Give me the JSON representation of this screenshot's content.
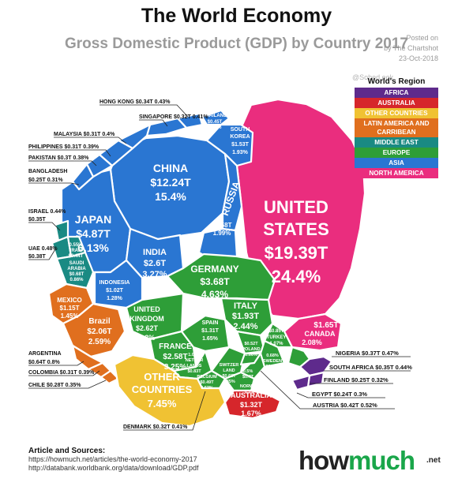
{
  "header": {
    "title": "The World Economy",
    "subtitle": "Gross Domestic Product (GDP) by Country 2017",
    "posted_line1": "Posted on",
    "posted_line2": "by The Chartshot",
    "posted_date": "23-Oct-2018",
    "watermark": "@Sobed.ook"
  },
  "legend": {
    "title": "World's Region",
    "items": [
      {
        "label": "AFRICA",
        "color": "#5e2a8c"
      },
      {
        "label": "AUSTRALIA",
        "color": "#d6262b"
      },
      {
        "label": "OTHER COUNTRIES",
        "color": "#f0c233"
      },
      {
        "label": "LATIN AMERICA AND CARRIBEAN",
        "color": "#e06f1e"
      },
      {
        "label": "MIDDLE EAST",
        "color": "#1a8a83"
      },
      {
        "label": "EUROPE",
        "color": "#2e9e38"
      },
      {
        "label": "ASIA",
        "color": "#2a76d2"
      },
      {
        "label": "NORTH AMERICA",
        "color": "#ea2d7e"
      }
    ]
  },
  "chart_data": {
    "type": "voronoi-treemap",
    "title": "The World Economy",
    "subtitle": "Gross Domestic Product (GDP) by Country 2017",
    "regions": [
      {
        "name": "NORTH AMERICA",
        "color": "#ea2d7e",
        "countries": [
          {
            "name": "UNITED STATES",
            "gdp": "$19.39T",
            "share": "24.4%"
          },
          {
            "name": "CANADA",
            "gdp": "$1.65T",
            "share": "2.08%"
          }
        ]
      },
      {
        "name": "ASIA",
        "color": "#2a76d2",
        "countries": [
          {
            "name": "CHINA",
            "gdp": "$12.24T",
            "share": "15.4%"
          },
          {
            "name": "JAPAN",
            "gdp": "$4.87T",
            "share": "6.13%"
          },
          {
            "name": "INDIA",
            "gdp": "$2.6T",
            "share": "3.27%"
          },
          {
            "name": "RUSSIA",
            "gdp": "$1.58T",
            "share": "1.99%"
          },
          {
            "name": "SOUTH KOREA",
            "gdp": "$1.53T",
            "share": "1.93%"
          },
          {
            "name": "INDONESIA",
            "gdp": "$1.02T",
            "share": "1.28%"
          },
          {
            "name": "THAILAND",
            "gdp": "$0.45T",
            "share": "0.57%"
          },
          {
            "name": "HONG KONG",
            "gdp": "$0.34T",
            "share": "0.43%"
          },
          {
            "name": "SINGAPORE",
            "gdp": "$0.32T",
            "share": "0.41%"
          },
          {
            "name": "MALAYSIA",
            "gdp": "$0.31T",
            "share": "0.4%"
          },
          {
            "name": "PHILIPPINES",
            "gdp": "$0.31T",
            "share": "0.39%"
          },
          {
            "name": "PAKISTAN",
            "gdp": "$0.3T",
            "share": "0.38%"
          },
          {
            "name": "BANGLADESH",
            "gdp": "$0.25T",
            "share": "0.31%"
          }
        ]
      },
      {
        "name": "MIDDLE EAST",
        "color": "#1a8a83",
        "countries": [
          {
            "name": "SAUDI ARABIA",
            "gdp": "$0.68T",
            "share": "0.86%"
          },
          {
            "name": "IRAN",
            "gdp": "$0.44T",
            "share": "0.55%"
          },
          {
            "name": "ISRAEL",
            "gdp": "$0.35T",
            "share": "0.44%"
          },
          {
            "name": "UAE",
            "gdp": "$0.38T",
            "share": "0.48%"
          }
        ]
      },
      {
        "name": "EUROPE",
        "color": "#2e9e38",
        "countries": [
          {
            "name": "GERMANY",
            "gdp": "$3.68T",
            "share": "4.63%"
          },
          {
            "name": "UNITED KINGDOM",
            "gdp": "$2.62T",
            "share": "3.3%"
          },
          {
            "name": "FRANCE",
            "gdp": "$2.58T",
            "share": "3.25%"
          },
          {
            "name": "ITALY",
            "gdp": "$1.93T",
            "share": "2.44%"
          },
          {
            "name": "SPAIN",
            "gdp": "$1.31T",
            "share": "1.65%"
          },
          {
            "name": "NETHERLANDS",
            "gdp": "$0.83T",
            "share": "1.04%"
          },
          {
            "name": "TURKEY",
            "gdp": "$0.85T",
            "share": "1.07%"
          },
          {
            "name": "SWITZERLAND",
            "gdp": "$0.68T",
            "share": "0.85%"
          },
          {
            "name": "SWEDEN",
            "gdp": "$0.54T",
            "share": "0.68%"
          },
          {
            "name": "POLAND",
            "gdp": "$0.52T",
            "share": "0.66%"
          },
          {
            "name": "BELGIUM",
            "gdp": "$0.49T",
            "share": "0.62%"
          },
          {
            "name": "AUSTRIA",
            "gdp": "$0.42T",
            "share": "0.52%"
          },
          {
            "name": "NORWAY",
            "gdp": "$0.4T",
            "share": "0.5%"
          },
          {
            "name": "DENMARK",
            "gdp": "$0.32T",
            "share": "0.41%"
          },
          {
            "name": "FINLAND",
            "gdp": "$0.25T",
            "share": "0.32%"
          }
        ]
      },
      {
        "name": "LATIN AMERICA AND CARRIBEAN",
        "color": "#e06f1e",
        "countries": [
          {
            "name": "Brazil",
            "gdp": "$2.06T",
            "share": "2.59%"
          },
          {
            "name": "MEXICO",
            "gdp": "$1.15T",
            "share": "1.45%"
          },
          {
            "name": "ARGENTINA",
            "gdp": "$0.64T",
            "share": "0.8%"
          },
          {
            "name": "COLOMBIA",
            "gdp": "$0.31T",
            "share": "0.39%"
          },
          {
            "name": "CHILE",
            "gdp": "$0.28T",
            "share": "0.35%"
          }
        ]
      },
      {
        "name": "AUSTRALIA",
        "color": "#d6262b",
        "countries": [
          {
            "name": "AUSTRALIA",
            "gdp": "$1.32T",
            "share": "1.67%"
          }
        ]
      },
      {
        "name": "OTHER COUNTRIES",
        "color": "#f0c233",
        "countries": [
          {
            "name": "OTHER COUNTRIES",
            "gdp": "",
            "share": "7.45%"
          }
        ]
      },
      {
        "name": "AFRICA",
        "color": "#5e2a8c",
        "countries": [
          {
            "name": "NIGERIA",
            "gdp": "$0.37T",
            "share": "0.47%"
          },
          {
            "name": "SOUTH AFRICA",
            "gdp": "$0.35T",
            "share": "0.44%"
          },
          {
            "name": "EGYPT",
            "gdp": "$0.24T",
            "share": "0.3%"
          }
        ]
      }
    ],
    "callouts": [
      "HONG KONG $0.34T 0.43%",
      "SINGAPORE $0.32T 0.41%",
      "MALAYSIA $0.31T 0.4%",
      "PHILIPPINES $0.31T 0.39%",
      "PAKISTAN $0.3T 0.38%",
      "BANGLADESH",
      "$0.25T 0.31%",
      "ISRAEL 0.44%",
      "$0.35T",
      "UAE 0.48%",
      "$0.38T",
      "ARGENTINA",
      "$0.64T 0.8%",
      "COLOMBIA $0.31T 0.39%",
      "CHILE $0.28T 0.35%",
      "DENMARK $0.32T 0.41%",
      "NIGERIA $0.37T 0.47%",
      "SOUTH AFRICA $0.35T 0.44%",
      "FINLAND $0.25T 0.32%",
      "EGYPT $0.24T 0.3%",
      "AUSTRIA $0.42T 0.52%"
    ]
  },
  "sources": {
    "heading": "Article and Sources:",
    "line1": "https://howmuch.net/articles/the-world-economy-2017",
    "line2": "http://databank.worldbank.org/data/download/GDP.pdf"
  },
  "brand": {
    "part1": "how",
    "part2": "much",
    "suffix": ".net"
  }
}
